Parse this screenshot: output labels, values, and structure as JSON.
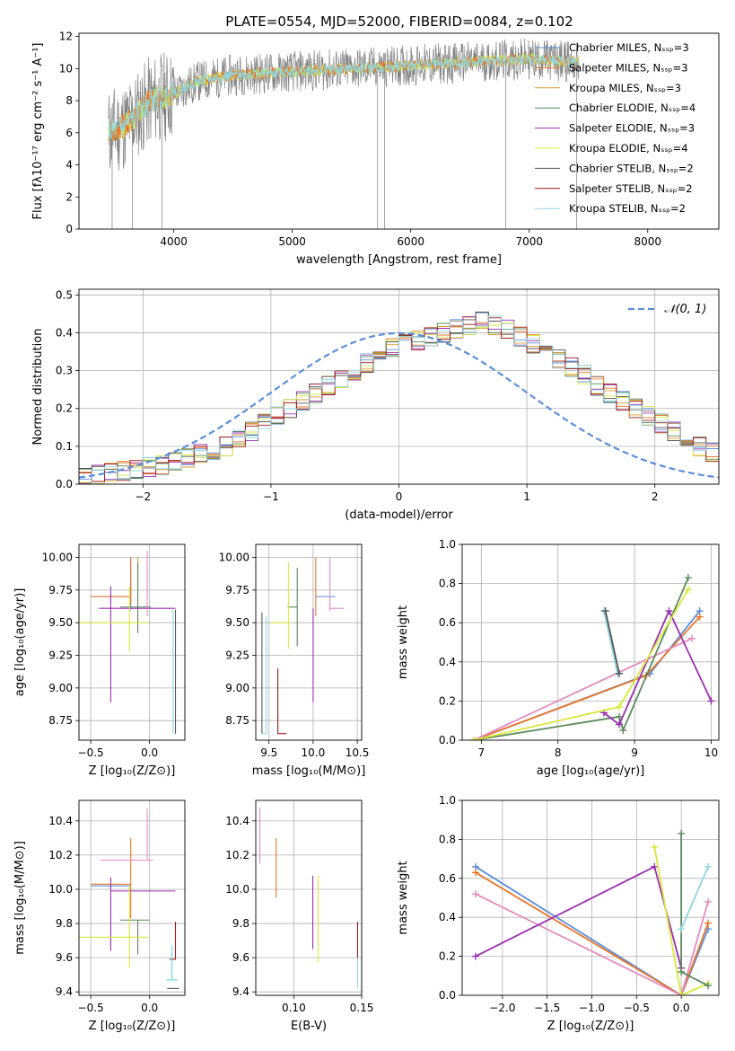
{
  "figure_title": "PLATE=0554, MJD=52000, FIBERID=0084, z=0.102",
  "colors": {
    "c1": "#5b8fd9",
    "c2": "#e8762a",
    "c3": "#d99a2b",
    "c4": "#5a8a5a",
    "c5": "#9a2fb0",
    "c6": "#d8e83a",
    "c7": "#555555",
    "c8": "#a01818",
    "c9": "#8fd6e0",
    "pink": "#e48bbd",
    "cyan": "#6cd7db",
    "gray": "#808080"
  },
  "chart_data": [
    {
      "id": "spectrum",
      "type": "line",
      "title": "PLATE=0554, MJD=52000, FIBERID=0084, z=0.102",
      "xlabel": "wavelength [Angstrom, rest frame]",
      "ylabel": "Flux [fλ10⁻¹⁷ erg cm⁻² s⁻¹ A⁻¹]",
      "xlim": [
        3200,
        8600
      ],
      "ylim": [
        0,
        12.2
      ],
      "xticks": [
        4000,
        5000,
        6000,
        7000,
        8000
      ],
      "yticks": [
        0,
        2,
        4,
        6,
        8,
        10,
        12
      ],
      "legend_position": "top-right",
      "legend": [
        "Chabrier MILES, Nₛₛₚ=3",
        "Salpeter MILES, Nₛₛₚ=3",
        "Kroupa MILES, Nₛₛₚ=3",
        "Chabrier ELODIE, Nₛₛₚ=4",
        "Salpeter ELODIE, Nₛₛₚ=3",
        "Kroupa ELODIE, Nₛₛₚ=4",
        "Chabrier STELIB, Nₛₛₚ=2",
        "Salpeter STELIB, Nₛₛₚ=2",
        "Kroupa STELIB, Nₛₛₚ=2"
      ],
      "data_points": {
        "wavelength": [
          3450,
          3600,
          3800,
          4000,
          4200,
          4500,
          5000,
          5500,
          6000,
          6500,
          7000,
          7400
        ],
        "flux": [
          6.0,
          6.5,
          8.0,
          8.4,
          9.2,
          9.6,
          9.8,
          10.0,
          10.2,
          10.4,
          10.6,
          10.4
        ]
      }
    },
    {
      "id": "residuals",
      "type": "histogram",
      "xlabel": "(data-model)/error",
      "ylabel": "Normed distribution",
      "xlim": [
        -2.5,
        2.5
      ],
      "ylim": [
        0,
        0.515
      ],
      "xticks": [
        -2,
        -1,
        0,
        1,
        2
      ],
      "yticks": [
        0.0,
        0.1,
        0.2,
        0.3,
        0.4,
        0.5
      ],
      "legend_position": "top-right",
      "legend": [
        "𝒩(0, 1)"
      ],
      "bin_width": 0.1,
      "base_values": [
        0.02,
        0.025,
        0.03,
        0.035,
        0.04,
        0.045,
        0.05,
        0.06,
        0.07,
        0.08,
        0.09,
        0.1,
        0.12,
        0.14,
        0.16,
        0.18,
        0.2,
        0.22,
        0.24,
        0.26,
        0.28,
        0.3,
        0.32,
        0.34,
        0.36,
        0.37,
        0.38,
        0.39,
        0.4,
        0.41,
        0.42,
        0.43,
        0.42,
        0.41,
        0.39,
        0.37,
        0.35,
        0.33,
        0.31,
        0.29,
        0.26,
        0.24,
        0.22,
        0.2,
        0.18,
        0.16,
        0.14,
        0.12,
        0.1,
        0.085,
        0.07,
        0.06,
        0.05,
        0.04,
        0.035,
        0.03
      ]
    },
    {
      "id": "age-vs-Z",
      "type": "errorbar",
      "xlabel": "Z [log₁₀(Z/Z⊙)]",
      "ylabel": "age  [log₁₀(age/yr)]",
      "xlim": [
        -0.6,
        0.3
      ],
      "ylim": [
        8.6,
        10.1
      ],
      "xticks": [
        -0.5,
        0.0
      ],
      "yticks": [
        8.75,
        9.0,
        9.25,
        9.5,
        9.75,
        10.0
      ],
      "points": [
        {
          "c": "c1",
          "x": -0.16,
          "y": 9.7,
          "xerr": [
            0.34,
            0.0
          ],
          "yerr": [
            0.1,
            0.3
          ]
        },
        {
          "c": "c2",
          "x": -0.16,
          "y": 9.7,
          "xerr": [
            0.34,
            0.0
          ],
          "yerr": [
            0.06,
            0.3
          ]
        },
        {
          "c": "c3",
          "x": -0.1,
          "y": 9.7,
          "xerr": [
            0.0,
            0.0
          ],
          "yerr": [
            0.0,
            0.3
          ]
        },
        {
          "c": "c4",
          "x": -0.1,
          "y": 9.62,
          "xerr": [
            0.15,
            0.11
          ],
          "yerr": [
            0.2,
            0.34
          ]
        },
        {
          "c": "c5",
          "x": -0.33,
          "y": 9.61,
          "xerr": [
            0.1,
            0.55
          ],
          "yerr": [
            0.72,
            0.17
          ]
        },
        {
          "c": "c6",
          "x": -0.17,
          "y": 9.5,
          "xerr": [
            0.5,
            0.16
          ],
          "yerr": [
            0.22,
            0.28
          ]
        },
        {
          "c": "c7",
          "x": 0.22,
          "y": 8.65,
          "xerr": [
            0.0,
            0.0
          ],
          "yerr": [
            0.0,
            0.95
          ]
        },
        {
          "c": "c9",
          "x": 0.2,
          "y": 8.65,
          "xerr": [
            0.0,
            0.0
          ],
          "yerr": [
            0.0,
            0.95
          ]
        },
        {
          "c": "pink",
          "x": -0.02,
          "y": 9.7,
          "xerr": [
            0.0,
            0.0
          ],
          "yerr": [
            0.15,
            0.35
          ]
        }
      ]
    },
    {
      "id": "age-vs-mass",
      "type": "errorbar",
      "xlabel": "mass [log₁₀(M/M⊙)]",
      "ylabel": "",
      "xlim": [
        9.35,
        10.55
      ],
      "ylim": [
        8.6,
        10.1
      ],
      "xticks": [
        9.5,
        10.0,
        10.5
      ],
      "yticks": [
        8.75,
        9.0,
        9.25,
        9.5,
        9.75,
        10.0
      ],
      "points": [
        {
          "c": "c1",
          "x": 10.02,
          "y": 9.7,
          "xerr": [
            0.0,
            0.23
          ],
          "yerr": [
            0.0,
            0.0
          ]
        },
        {
          "c": "c2",
          "x": 10.03,
          "y": 9.7,
          "xerr": [
            0.0,
            0.0
          ],
          "yerr": [
            0.15,
            0.3
          ]
        },
        {
          "c": "pink",
          "x": 10.19,
          "y": 9.61,
          "xerr": [
            0.0,
            0.16
          ],
          "yerr": [
            0.02,
            0.39
          ]
        },
        {
          "c": "c4",
          "x": 9.82,
          "y": 9.62,
          "xerr": [
            0.11,
            0.0
          ],
          "yerr": [
            0.3,
            0.3
          ]
        },
        {
          "c": "c5",
          "x": 10.0,
          "y": 9.61,
          "xerr": [
            0.0,
            0.0
          ],
          "yerr": [
            0.72,
            0.0
          ]
        },
        {
          "c": "c6",
          "x": 9.72,
          "y": 9.5,
          "xerr": [
            0.2,
            0.02
          ],
          "yerr": [
            0.2,
            0.46
          ]
        },
        {
          "c": "c7",
          "x": 9.42,
          "y": 8.65,
          "xerr": [
            0.0,
            0.0
          ],
          "yerr": [
            0.0,
            0.93
          ]
        },
        {
          "c": "c9",
          "x": 9.47,
          "y": 8.65,
          "xerr": [
            0.05,
            0.0
          ],
          "yerr": [
            0.0,
            0.9
          ]
        },
        {
          "c": "c8",
          "x": 9.6,
          "y": 8.65,
          "xerr": [
            0.0,
            0.1
          ],
          "yerr": [
            0.0,
            0.5
          ]
        }
      ]
    },
    {
      "id": "massweight-vs-age",
      "type": "line",
      "xlabel": "age  [log₁₀(age/yr)]",
      "ylabel": "mass weight",
      "xlim": [
        6.75,
        10.1
      ],
      "ylim": [
        0.0,
        1.0
      ],
      "xticks": [
        7,
        8,
        9,
        10
      ],
      "yticks": [
        0.0,
        0.2,
        0.4,
        0.6,
        0.8,
        1.0
      ],
      "series": [
        {
          "c": "c1",
          "x": [
            6.9,
            9.2,
            9.85
          ],
          "y": [
            0.0,
            0.34,
            0.66
          ]
        },
        {
          "c": "c2",
          "x": [
            6.9,
            9.15,
            9.85
          ],
          "y": [
            0.0,
            0.33,
            0.63
          ]
        },
        {
          "c": "pink",
          "x": [
            6.9,
            9.75
          ],
          "y": [
            0.0,
            0.52
          ]
        },
        {
          "c": "c4",
          "x": [
            6.9,
            8.8,
            8.85,
            9.7
          ],
          "y": [
            0.0,
            0.12,
            0.05,
            0.83
          ]
        },
        {
          "c": "c5",
          "x": [
            8.6,
            8.8,
            9.45,
            10.0
          ],
          "y": [
            0.14,
            0.08,
            0.66,
            0.2
          ]
        },
        {
          "c": "c6",
          "x": [
            6.9,
            8.8,
            9.7
          ],
          "y": [
            0.0,
            0.17,
            0.77
          ]
        },
        {
          "c": "c9",
          "x": [
            8.6,
            8.78
          ],
          "y": [
            0.66,
            0.34
          ]
        },
        {
          "c": "c7",
          "x": [
            8.62,
            8.8
          ],
          "y": [
            0.66,
            0.34
          ]
        }
      ]
    },
    {
      "id": "mass-vs-Z",
      "type": "errorbar",
      "xlabel": "Z [log₁₀(Z/Z⊙)]",
      "ylabel": "mass [log₁₀(M/M⊙)]",
      "xlim": [
        -0.6,
        0.3
      ],
      "ylim": [
        9.38,
        10.52
      ],
      "xticks": [
        -0.5,
        0.0
      ],
      "yticks": [
        9.4,
        9.6,
        9.8,
        10.0,
        10.2,
        10.4
      ],
      "points": [
        {
          "c": "c1",
          "x": -0.16,
          "y": 10.02,
          "xerr": [
            0.34,
            0.0
          ],
          "yerr": [
            0.0,
            0.0
          ]
        },
        {
          "c": "c2",
          "x": -0.16,
          "y": 10.03,
          "xerr": [
            0.34,
            0.0
          ],
          "yerr": [
            0.2,
            0.27
          ]
        },
        {
          "c": "pink",
          "x": -0.02,
          "y": 10.17,
          "xerr": [
            0.4,
            0.05
          ],
          "yerr": [
            0.0,
            0.3
          ]
        },
        {
          "c": "c4",
          "x": -0.1,
          "y": 9.82,
          "xerr": [
            0.15,
            0.1
          ],
          "yerr": [
            0.2,
            0.0
          ]
        },
        {
          "c": "c5",
          "x": -0.33,
          "y": 9.99,
          "xerr": [
            0.0,
            0.55
          ],
          "yerr": [
            0.35,
            0.08
          ]
        },
        {
          "c": "c6",
          "x": -0.17,
          "y": 9.72,
          "xerr": [
            0.5,
            0.16
          ],
          "yerr": [
            0.18,
            0.3
          ]
        },
        {
          "c": "c8",
          "x": 0.22,
          "y": 9.59,
          "xerr": [
            0.05,
            0.0
          ],
          "yerr": [
            0.0,
            0.22
          ]
        },
        {
          "c": "c7",
          "x": 0.2,
          "y": 9.42,
          "xerr": [
            0.05,
            0.05
          ],
          "yerr": [
            0.0,
            0.0
          ]
        },
        {
          "c": "cyan",
          "x": 0.19,
          "y": 9.47,
          "xerr": [
            0.05,
            0.05
          ],
          "yerr": [
            0.0,
            0.2
          ]
        }
      ]
    },
    {
      "id": "mass-vs-EBV",
      "type": "errorbar",
      "xlabel": "E(B-V)",
      "ylabel": "",
      "xlim": [
        0.072,
        0.15
      ],
      "ylim": [
        9.38,
        10.52
      ],
      "xticks": [
        0.1,
        0.15
      ],
      "yticks": [
        9.4,
        9.6,
        9.8,
        10.0,
        10.2,
        10.4
      ],
      "points": [
        {
          "c": "pink",
          "x": 0.075,
          "y": 10.2,
          "xerr": [
            0.0,
            0.0
          ],
          "yerr": [
            0.05,
            0.28
          ]
        },
        {
          "c": "c2",
          "x": 0.087,
          "y": 10.05,
          "xerr": [
            0.0,
            0.0
          ],
          "yerr": [
            0.1,
            0.25
          ]
        },
        {
          "c": "c5",
          "x": 0.114,
          "y": 9.85,
          "xerr": [
            0.0,
            0.0
          ],
          "yerr": [
            0.2,
            0.23
          ]
        },
        {
          "c": "c6",
          "x": 0.118,
          "y": 9.85,
          "xerr": [
            0.0,
            0.0
          ],
          "yerr": [
            0.28,
            0.23
          ]
        },
        {
          "c": "c8",
          "x": 0.147,
          "y": 9.6,
          "xerr": [
            0.0,
            0.0
          ],
          "yerr": [
            0.0,
            0.21
          ]
        },
        {
          "c": "c9",
          "x": 0.147,
          "y": 9.5,
          "xerr": [
            0.0,
            0.0
          ],
          "yerr": [
            0.08,
            0.1
          ]
        }
      ]
    },
    {
      "id": "massweight-vs-Z",
      "type": "line",
      "xlabel": "Z [log₁₀(Z/Z⊙)]",
      "ylabel": "mass weight",
      "xlim": [
        -2.45,
        0.42
      ],
      "ylim": [
        0.0,
        1.0
      ],
      "xticks": [
        -2.0,
        -1.5,
        -1.0,
        -0.5,
        0.0
      ],
      "yticks": [
        0.0,
        0.2,
        0.4,
        0.6,
        0.8,
        1.0
      ],
      "series": [
        {
          "c": "c1",
          "x": [
            -2.3,
            0.0,
            0.3
          ],
          "y": [
            0.66,
            0.0,
            0.34
          ]
        },
        {
          "c": "c2",
          "x": [
            -2.3,
            0.0,
            0.3
          ],
          "y": [
            0.63,
            0.0,
            0.37
          ]
        },
        {
          "c": "pink",
          "x": [
            -2.3,
            0.0,
            0.3
          ],
          "y": [
            0.52,
            0.0,
            0.48
          ]
        },
        {
          "c": "c5",
          "x": [
            -2.3,
            -0.3,
            0.0
          ],
          "y": [
            0.2,
            0.66,
            0.14
          ]
        },
        {
          "c": "c6",
          "x": [
            -0.3,
            0.0,
            0.3
          ],
          "y": [
            0.76,
            0.0,
            0.06
          ]
        },
        {
          "c": "c4",
          "x": [
            0.0,
            0.0,
            0.3
          ],
          "y": [
            0.83,
            0.12,
            0.05
          ]
        },
        {
          "c": "c9",
          "x": [
            0.0,
            0.3
          ],
          "y": [
            0.34,
            0.66
          ]
        }
      ]
    }
  ]
}
